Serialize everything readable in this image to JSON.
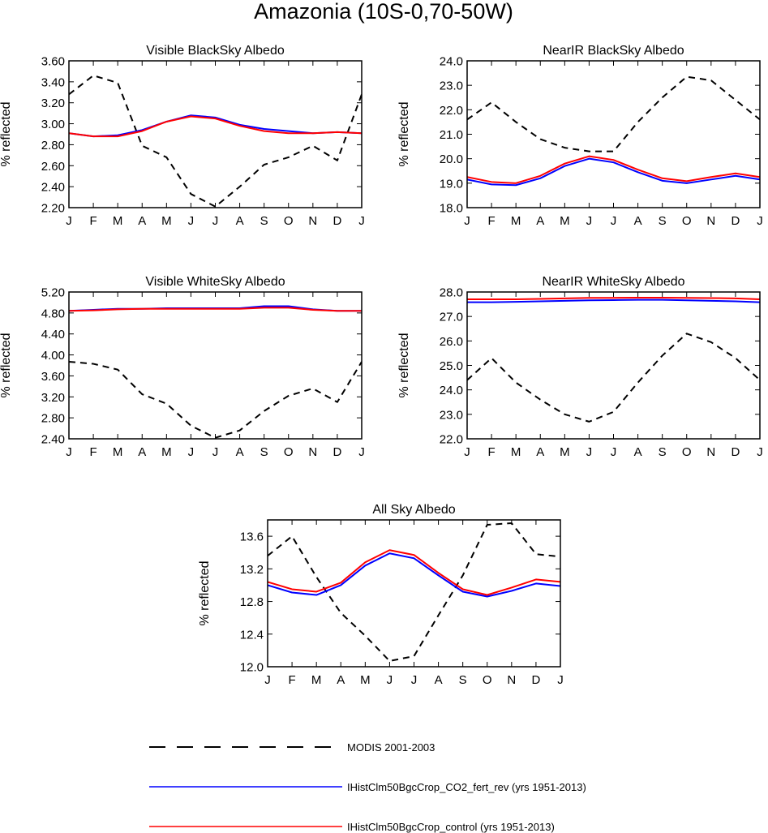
{
  "title": "Amazonia (10S-0,70-50W)",
  "colors": {
    "modis": "#000000",
    "co2": "#0000ff",
    "control": "#ff0000"
  },
  "legend": [
    {
      "key": "modis",
      "label": "MODIS 2001-2003",
      "style": "dashed"
    },
    {
      "key": "co2",
      "label": "IHistClm50BgcCrop_CO2_fert_rev (yrs 1951-2013)",
      "style": "solid"
    },
    {
      "key": "control",
      "label": "IHistClm50BgcCrop_control (yrs 1951-2013)",
      "style": "solid"
    }
  ],
  "chart_data": [
    {
      "type": "line",
      "title": "Visible BlackSky Albedo",
      "ylabel": "% reflected",
      "categories": [
        "J",
        "F",
        "M",
        "A",
        "M",
        "J",
        "J",
        "A",
        "S",
        "O",
        "N",
        "D",
        "J"
      ],
      "ylim": [
        2.2,
        3.6
      ],
      "yticks": [
        "2.20",
        "2.40",
        "2.60",
        "2.80",
        "3.00",
        "3.20",
        "3.40",
        "3.60"
      ],
      "series": [
        {
          "key": "modis",
          "name": "MODIS 2001-2003",
          "values": [
            3.28,
            3.46,
            3.39,
            2.79,
            2.68,
            2.33,
            2.21,
            2.4,
            2.61,
            2.68,
            2.79,
            2.65,
            3.28
          ]
        },
        {
          "key": "co2",
          "name": "IHistClm50BgcCrop_CO2_fert_rev (yrs 1951-2013)",
          "values": [
            2.91,
            2.88,
            2.89,
            2.94,
            3.02,
            3.08,
            3.06,
            2.99,
            2.95,
            2.93,
            2.91,
            2.92,
            2.91
          ]
        },
        {
          "key": "control",
          "name": "IHistClm50BgcCrop_control (yrs 1951-2013)",
          "values": [
            2.91,
            2.88,
            2.88,
            2.93,
            3.02,
            3.07,
            3.05,
            2.98,
            2.93,
            2.91,
            2.91,
            2.92,
            2.91
          ]
        }
      ]
    },
    {
      "type": "line",
      "title": "NearIR BlackSky Albedo",
      "ylabel": "% reflected",
      "categories": [
        "J",
        "F",
        "M",
        "A",
        "M",
        "J",
        "J",
        "A",
        "S",
        "O",
        "N",
        "D",
        "J"
      ],
      "ylim": [
        18.0,
        24.0
      ],
      "yticks": [
        "18.0",
        "19.0",
        "20.0",
        "21.0",
        "22.0",
        "23.0",
        "24.0"
      ],
      "series": [
        {
          "key": "modis",
          "name": "MODIS 2001-2003",
          "values": [
            21.6,
            22.3,
            21.5,
            20.8,
            20.45,
            20.3,
            20.3,
            21.5,
            22.5,
            23.35,
            23.2,
            22.4,
            21.6
          ]
        },
        {
          "key": "co2",
          "name": "IHistClm50BgcCrop_CO2_fert_rev (yrs 1951-2013)",
          "values": [
            19.15,
            18.95,
            18.92,
            19.2,
            19.7,
            20.0,
            19.85,
            19.45,
            19.1,
            19.0,
            19.15,
            19.3,
            19.15
          ]
        },
        {
          "key": "control",
          "name": "IHistClm50BgcCrop_control (yrs 1951-2013)",
          "values": [
            19.25,
            19.05,
            19.0,
            19.3,
            19.8,
            20.1,
            19.95,
            19.55,
            19.2,
            19.08,
            19.25,
            19.4,
            19.25
          ]
        }
      ]
    },
    {
      "type": "line",
      "title": "Visible WhiteSky Albedo",
      "ylabel": "% reflected",
      "categories": [
        "J",
        "F",
        "M",
        "A",
        "M",
        "J",
        "J",
        "A",
        "S",
        "O",
        "N",
        "D",
        "J"
      ],
      "ylim": [
        2.4,
        5.2
      ],
      "yticks": [
        "2.40",
        "2.80",
        "3.20",
        "3.60",
        "4.00",
        "4.40",
        "4.80",
        "5.20"
      ],
      "series": [
        {
          "key": "modis",
          "name": "MODIS 2001-2003",
          "values": [
            3.87,
            3.83,
            3.72,
            3.25,
            3.07,
            2.65,
            2.42,
            2.56,
            2.93,
            3.22,
            3.36,
            3.1,
            3.87
          ]
        },
        {
          "key": "co2",
          "name": "IHistClm50BgcCrop_CO2_fert_rev (yrs 1951-2013)",
          "values": [
            4.84,
            4.86,
            4.88,
            4.88,
            4.89,
            4.89,
            4.89,
            4.89,
            4.93,
            4.93,
            4.87,
            4.84,
            4.84
          ]
        },
        {
          "key": "control",
          "name": "IHistClm50BgcCrop_control (yrs 1951-2013)",
          "values": [
            4.84,
            4.85,
            4.87,
            4.88,
            4.88,
            4.88,
            4.88,
            4.88,
            4.9,
            4.9,
            4.86,
            4.84,
            4.84
          ]
        }
      ]
    },
    {
      "type": "line",
      "title": "NearIR WhiteSky Albedo",
      "ylabel": "% reflected",
      "categories": [
        "J",
        "F",
        "M",
        "A",
        "M",
        "J",
        "J",
        "A",
        "S",
        "O",
        "N",
        "D",
        "J"
      ],
      "ylim": [
        22.0,
        28.0
      ],
      "yticks": [
        "22.0",
        "23.0",
        "24.0",
        "25.0",
        "26.0",
        "27.0",
        "28.0"
      ],
      "series": [
        {
          "key": "modis",
          "name": "MODIS 2001-2003",
          "values": [
            24.4,
            25.3,
            24.3,
            23.6,
            23.0,
            22.7,
            23.1,
            24.3,
            25.4,
            26.3,
            25.95,
            25.3,
            24.4
          ]
        },
        {
          "key": "co2",
          "name": "IHistClm50BgcCrop_CO2_fert_rev (yrs 1951-2013)",
          "values": [
            27.58,
            27.58,
            27.6,
            27.62,
            27.64,
            27.66,
            27.67,
            27.68,
            27.68,
            27.66,
            27.64,
            27.62,
            27.58
          ]
        },
        {
          "key": "control",
          "name": "IHistClm50BgcCrop_control (yrs 1951-2013)",
          "values": [
            27.7,
            27.7,
            27.7,
            27.72,
            27.74,
            27.76,
            27.76,
            27.77,
            27.77,
            27.76,
            27.75,
            27.74,
            27.7
          ]
        }
      ]
    },
    {
      "type": "line",
      "title": "All Sky Albedo",
      "ylabel": "% reflected",
      "categories": [
        "J",
        "F",
        "M",
        "A",
        "M",
        "J",
        "J",
        "A",
        "S",
        "O",
        "N",
        "D",
        "J"
      ],
      "ylim": [
        12.0,
        13.8
      ],
      "yticks": [
        "12.0",
        "12.4",
        "12.8",
        "13.2",
        "13.6"
      ],
      "series": [
        {
          "key": "modis",
          "name": "MODIS 2001-2003",
          "values": [
            13.36,
            13.6,
            13.1,
            12.66,
            12.38,
            12.07,
            12.13,
            12.63,
            13.12,
            13.74,
            13.76,
            13.38,
            13.35
          ]
        },
        {
          "key": "co2",
          "name": "IHistClm50BgcCrop_CO2_fert_rev (yrs 1951-2013)",
          "values": [
            13.0,
            12.91,
            12.88,
            13.0,
            13.24,
            13.39,
            13.33,
            13.12,
            12.92,
            12.86,
            12.93,
            13.02,
            12.99
          ]
        },
        {
          "key": "control",
          "name": "IHistClm50BgcCrop_control (yrs 1951-2013)",
          "values": [
            13.04,
            12.95,
            12.92,
            13.03,
            13.28,
            13.43,
            13.37,
            13.15,
            12.95,
            12.88,
            12.97,
            13.07,
            13.04
          ]
        }
      ]
    }
  ]
}
